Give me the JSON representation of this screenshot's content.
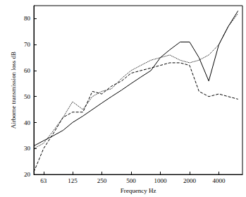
{
  "chart_data": {
    "type": "line",
    "x_label": "Frequency Hz",
    "y_label": "Airborne transmission loss dB",
    "log": "x",
    "grid": false,
    "xlim": [
      50,
      7000
    ],
    "xticks": [
      63,
      125,
      250,
      500,
      1000,
      2000,
      4000
    ],
    "ylim": [
      20,
      85
    ],
    "yticks": [
      20,
      30,
      40,
      50,
      60,
      70,
      80
    ],
    "x": [
      50,
      63,
      80,
      100,
      125,
      160,
      200,
      250,
      315,
      400,
      500,
      630,
      800,
      1000,
      1250,
      1600,
      2000,
      2500,
      3150,
      4000,
      5000,
      6300
    ],
    "series": [
      {
        "color": "#000000",
        "line_style": "solid",
        "values": [
          31,
          33,
          35,
          37,
          40,
          42.5,
          45,
          47.5,
          50,
          52.5,
          55,
          57.5,
          60,
          65,
          68,
          71,
          71,
          65,
          56,
          70,
          77,
          83
        ]
      },
      {
        "color": "#000000",
        "line_style": "dotted",
        "values": [
          30,
          32,
          37,
          42,
          48,
          45,
          50,
          52,
          53,
          57,
          60,
          62,
          64,
          65,
          66,
          64,
          63,
          64,
          66,
          70,
          77,
          82
        ]
      },
      {
        "color": "#000000",
        "line_style": "dashed",
        "values": [
          21,
          30,
          36,
          42,
          44,
          44,
          52,
          51,
          54,
          56,
          59,
          60,
          61,
          62,
          63,
          63,
          62,
          52,
          50,
          51,
          50,
          49
        ]
      }
    ]
  }
}
